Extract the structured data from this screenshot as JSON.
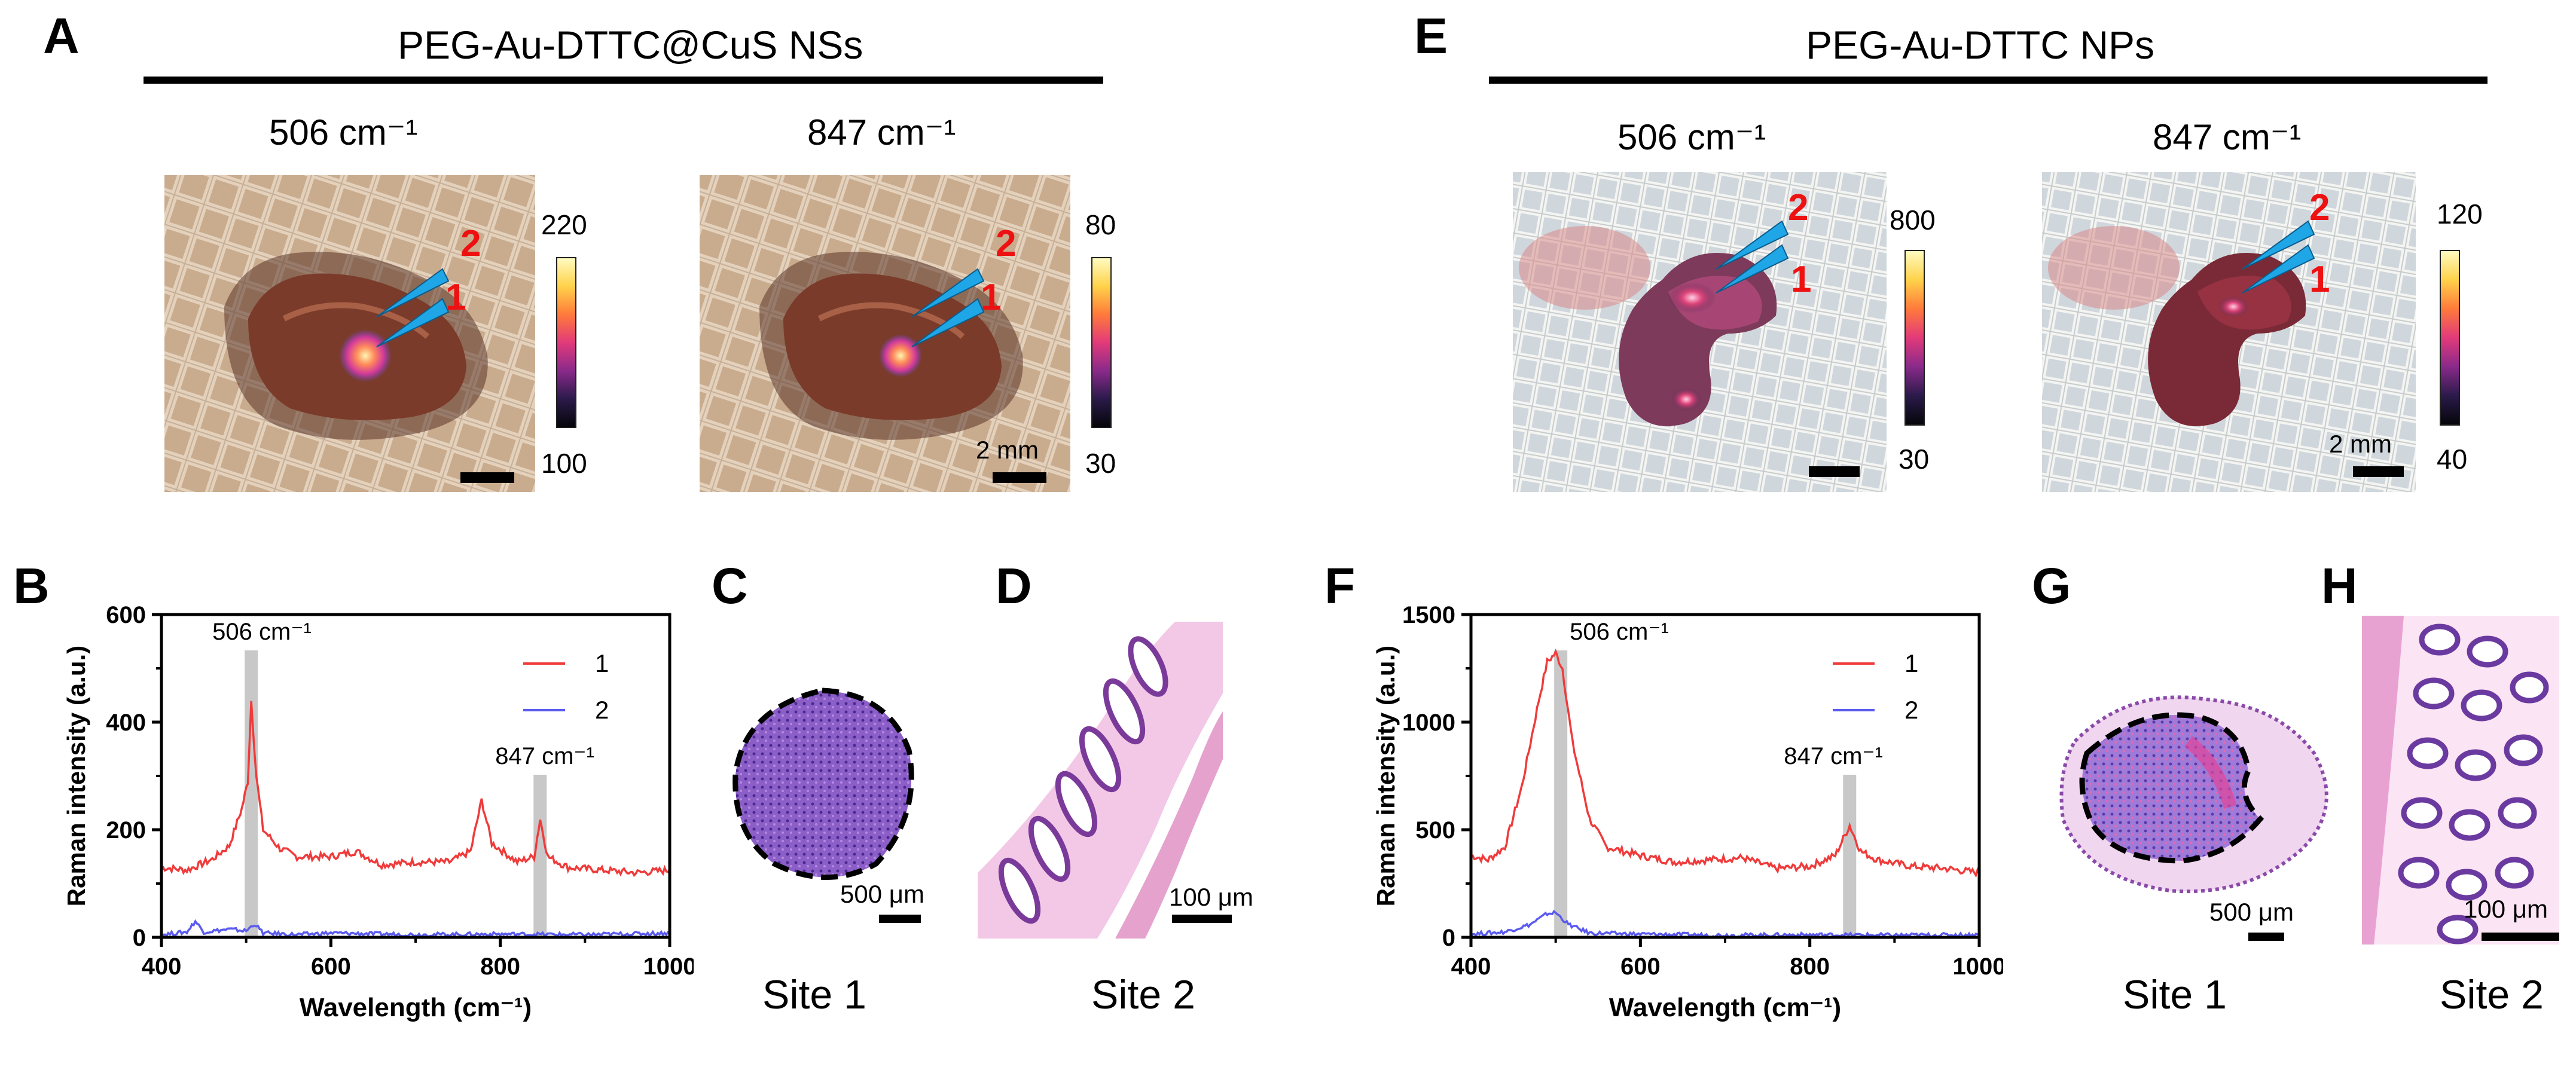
{
  "left": {
    "letters": {
      "a": "A",
      "b": "B",
      "c": "C",
      "d": "D"
    },
    "title": "PEG-Au-DTTC@CuS NSs",
    "images": [
      {
        "wavenumber": "506 cm⁻¹",
        "cb_max": "220",
        "cb_min": "100",
        "scale_text": ""
      },
      {
        "wavenumber": "847 cm⁻¹",
        "cb_max": "80",
        "cb_min": "30",
        "scale_text": "2 mm"
      }
    ],
    "markers": {
      "m1": "1",
      "m2": "2"
    },
    "histology": {
      "c_scale": "500 μm",
      "d_scale": "100 μm",
      "c_site": "Site 1",
      "d_site": "Site 2"
    }
  },
  "right": {
    "letters": {
      "e": "E",
      "f": "F",
      "g": "G",
      "h": "H"
    },
    "title": "PEG-Au-DTTC NPs",
    "images": [
      {
        "wavenumber": "506 cm⁻¹",
        "cb_max": "800",
        "cb_min": "30",
        "scale_text": ""
      },
      {
        "wavenumber": "847 cm⁻¹",
        "cb_max": "120",
        "cb_min": "40",
        "scale_text": "2 mm"
      }
    ],
    "markers": {
      "m1": "1",
      "m2": "2"
    },
    "histology": {
      "g_scale": "500 μm",
      "h_scale": "100 μm",
      "g_site": "Site 1",
      "h_site": "Site 2"
    }
  },
  "colors": {
    "series1": "#ef3b3b",
    "series2": "#5b5bf0",
    "highlight": "#c8c8c8",
    "marker_text": "#ee1111",
    "arrow": "#1fa6e6"
  },
  "chart_data": [
    {
      "id": "B",
      "type": "line",
      "xlabel": "Wavelength (cm⁻¹)",
      "ylabel": "Raman intensity (a.u.)",
      "xlim": [
        400,
        1000
      ],
      "ylim": [
        0,
        600
      ],
      "xticks": [
        400,
        600,
        800,
        1000
      ],
      "yticks": [
        0,
        200,
        400,
        600
      ],
      "highlight_bands": [
        506,
        847
      ],
      "annotations": [
        "506 cm⁻¹",
        "847 cm⁻¹"
      ],
      "legend_position": "top-right",
      "series": [
        {
          "name": "1",
          "color": "#ef3b3b",
          "points": [
            [
              400,
              130
            ],
            [
              430,
              125
            ],
            [
              460,
              145
            ],
            [
              480,
              170
            ],
            [
              495,
              240
            ],
            [
              502,
              290
            ],
            [
              506,
              440
            ],
            [
              512,
              300
            ],
            [
              520,
              200
            ],
            [
              540,
              165
            ],
            [
              560,
              150
            ],
            [
              600,
              150
            ],
            [
              630,
              160
            ],
            [
              660,
              135
            ],
            [
              700,
              140
            ],
            [
              740,
              140
            ],
            [
              765,
              160
            ],
            [
              778,
              255
            ],
            [
              790,
              175
            ],
            [
              820,
              140
            ],
            [
              840,
              150
            ],
            [
              847,
              220
            ],
            [
              856,
              150
            ],
            [
              880,
              130
            ],
            [
              920,
              125
            ],
            [
              960,
              120
            ],
            [
              1000,
              125
            ]
          ]
        },
        {
          "name": "2",
          "color": "#5b5bf0",
          "points": [
            [
              400,
              5
            ],
            [
              430,
              10
            ],
            [
              440,
              30
            ],
            [
              450,
              10
            ],
            [
              480,
              15
            ],
            [
              500,
              12
            ],
            [
              510,
              25
            ],
            [
              520,
              8
            ],
            [
              560,
              5
            ],
            [
              600,
              8
            ],
            [
              700,
              5
            ],
            [
              800,
              6
            ],
            [
              900,
              5
            ],
            [
              1000,
              8
            ]
          ]
        }
      ]
    },
    {
      "id": "F",
      "type": "line",
      "xlabel": "Wavelength (cm⁻¹)",
      "ylabel": "Raman intensity (a.u.)",
      "xlim": [
        400,
        1000
      ],
      "ylim": [
        0,
        1500
      ],
      "xticks": [
        400,
        600,
        800,
        1000
      ],
      "yticks": [
        0,
        500,
        1000,
        1500
      ],
      "highlight_bands": [
        506,
        847
      ],
      "annotations": [
        "506 cm⁻¹",
        "847 cm⁻¹"
      ],
      "legend_position": "top-right",
      "series": [
        {
          "name": "1",
          "color": "#ef3b3b",
          "points": [
            [
              400,
              380
            ],
            [
              420,
              360
            ],
            [
              440,
              420
            ],
            [
              460,
              700
            ],
            [
              480,
              1100
            ],
            [
              490,
              1280
            ],
            [
              500,
              1320
            ],
            [
              508,
              1250
            ],
            [
              520,
              900
            ],
            [
              540,
              550
            ],
            [
              560,
              420
            ],
            [
              600,
              380
            ],
            [
              640,
              350
            ],
            [
              680,
              360
            ],
            [
              720,
              370
            ],
            [
              760,
              320
            ],
            [
              800,
              330
            ],
            [
              830,
              380
            ],
            [
              847,
              520
            ],
            [
              860,
              400
            ],
            [
              880,
              360
            ],
            [
              920,
              330
            ],
            [
              960,
              320
            ],
            [
              1000,
              300
            ]
          ]
        },
        {
          "name": "2",
          "color": "#5b5bf0",
          "points": [
            [
              400,
              15
            ],
            [
              440,
              25
            ],
            [
              470,
              60
            ],
            [
              490,
              110
            ],
            [
              500,
              115
            ],
            [
              515,
              60
            ],
            [
              540,
              20
            ],
            [
              600,
              15
            ],
            [
              700,
              10
            ],
            [
              800,
              12
            ],
            [
              900,
              10
            ],
            [
              1000,
              12
            ]
          ]
        }
      ]
    }
  ]
}
